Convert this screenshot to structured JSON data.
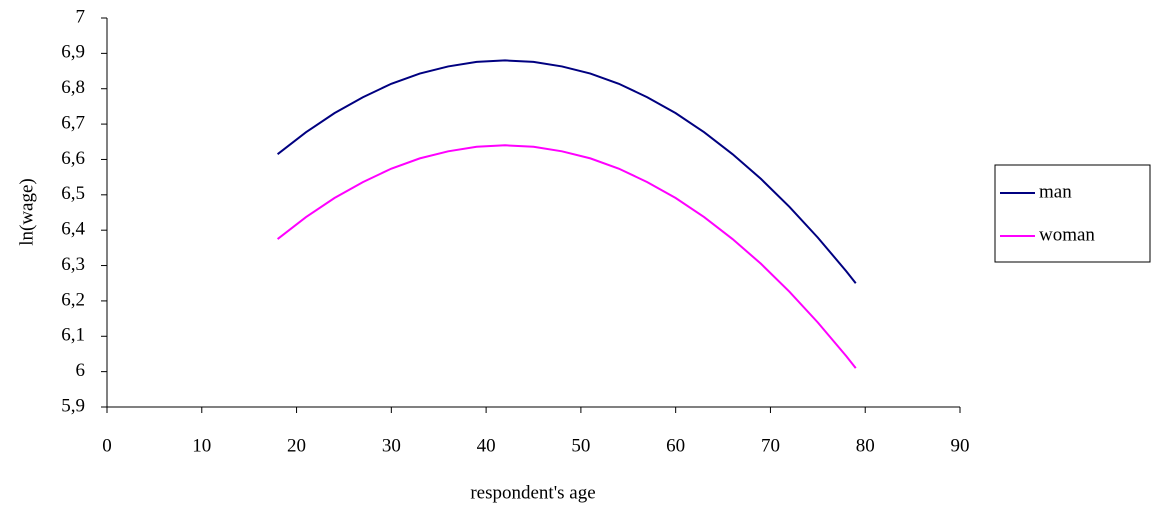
{
  "chart_data": {
    "type": "line",
    "xlabel": "respondent's age",
    "ylabel": "ln(wage)",
    "x": [
      18,
      21,
      24,
      27,
      30,
      33,
      36,
      39,
      42,
      45,
      48,
      51,
      54,
      57,
      60,
      63,
      66,
      69,
      72,
      75,
      78,
      79
    ],
    "series": [
      {
        "name": "man",
        "color": "#000080",
        "values": [
          6.615,
          6.677,
          6.731,
          6.776,
          6.814,
          6.843,
          6.863,
          6.876,
          6.88,
          6.876,
          6.863,
          6.843,
          6.814,
          6.776,
          6.731,
          6.677,
          6.615,
          6.545,
          6.466,
          6.379,
          6.284,
          6.25
        ]
      },
      {
        "name": "woman",
        "color": "#ff00ff",
        "values": [
          6.375,
          6.437,
          6.491,
          6.536,
          6.574,
          6.603,
          6.623,
          6.636,
          6.64,
          6.636,
          6.623,
          6.603,
          6.574,
          6.536,
          6.491,
          6.437,
          6.375,
          6.305,
          6.226,
          6.139,
          6.044,
          6.01
        ]
      }
    ],
    "xlim": [
      0,
      90
    ],
    "xticks": [
      0,
      10,
      20,
      30,
      40,
      50,
      60,
      70,
      80,
      90
    ],
    "ylim": [
      5.9,
      7
    ],
    "yticks": [
      {
        "value": 5.9,
        "label": "5,9"
      },
      6,
      {
        "value": 6.1,
        "label": "6,1"
      },
      {
        "value": 6.2,
        "label": "6,2"
      },
      {
        "value": 6.3,
        "label": "6,3"
      },
      {
        "value": 6.4,
        "label": "6,4"
      },
      {
        "value": 6.5,
        "label": "6,5"
      },
      {
        "value": 6.6,
        "label": "6,6"
      },
      {
        "value": 6.7,
        "label": "6,7"
      },
      {
        "value": 6.8,
        "label": "6,8"
      },
      {
        "value": 6.9,
        "label": "6,9"
      },
      7
    ],
    "grid": false,
    "legend": "right"
  }
}
